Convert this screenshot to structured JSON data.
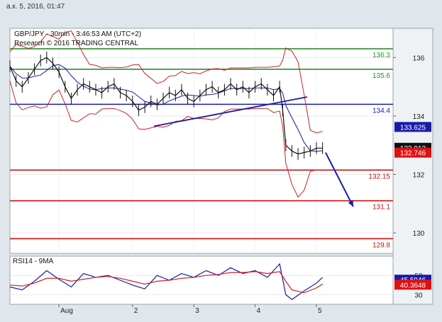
{
  "header": {
    "timestamp": "а.к. 5, 2016, 01:47"
  },
  "chart_data": {
    "type": "line",
    "title": "GBP/JPY - 30min - 3:46:53 AM (UTC+2)",
    "subtitle": "Research © 2016 TRADING CENTRAL",
    "ylim": [
      129.3,
      137.0
    ],
    "y_ticks": [
      {
        "value": 130,
        "label": "130"
      },
      {
        "value": 132,
        "label": "132"
      },
      {
        "value": 134,
        "label": "134"
      },
      {
        "value": 136,
        "label": "136"
      }
    ],
    "x_ticks": [
      {
        "x": 0.8,
        "label": "Aug"
      },
      {
        "x": 2,
        "label": "2"
      },
      {
        "x": 3,
        "label": "3"
      },
      {
        "x": 4,
        "label": "4"
      },
      {
        "x": 5,
        "label": "5"
      }
    ],
    "levels": [
      {
        "name": "resistance-2",
        "value": 136.3,
        "label": "136.3",
        "color": "#2e8b2e"
      },
      {
        "name": "resistance-1",
        "value": 135.6,
        "label": "135.6",
        "color": "#2e8b2e"
      },
      {
        "name": "pivot",
        "value": 134.4,
        "label": "134.4",
        "color": "#1a1aa6"
      },
      {
        "name": "support-1",
        "value": 132.15,
        "label": "132.15",
        "color": "#cc1111"
      },
      {
        "name": "support-2",
        "value": 131.1,
        "label": "131.1",
        "color": "#cc1111"
      },
      {
        "name": "support-3",
        "value": 129.8,
        "label": "129.8",
        "color": "#cc1111"
      }
    ],
    "price_tags": [
      {
        "value": 133.625,
        "label": "133.625",
        "bg": "#1a1aa6",
        "fg": "#ffffff"
      },
      {
        "value": 132.912,
        "label": "132.912",
        "bg": "#111111",
        "fg": "#ffffff"
      },
      {
        "value": 132.746,
        "label": "132.746",
        "bg": "#dd1111",
        "fg": "#ffffff"
      }
    ],
    "price_series": {
      "x": [
        0.0,
        0.1,
        0.2,
        0.3,
        0.4,
        0.5,
        0.6,
        0.7,
        0.8,
        0.9,
        1.0,
        1.1,
        1.2,
        1.3,
        1.4,
        1.5,
        1.6,
        1.7,
        1.8,
        1.9,
        2.0,
        2.1,
        2.2,
        2.3,
        2.4,
        2.5,
        2.6,
        2.7,
        2.8,
        2.9,
        3.0,
        3.1,
        3.2,
        3.3,
        3.4,
        3.5,
        3.6,
        3.7,
        3.8,
        3.9,
        4.0,
        4.1,
        4.2,
        4.3,
        4.4,
        4.45,
        4.5,
        4.6,
        4.7,
        4.8,
        4.9,
        5.0,
        5.1
      ],
      "y": [
        135.7,
        135.2,
        135.0,
        135.3,
        135.6,
        135.9,
        136.0,
        135.8,
        135.5,
        135.0,
        134.6,
        134.9,
        135.1,
        135.0,
        134.9,
        134.8,
        135.0,
        135.1,
        134.8,
        134.7,
        134.5,
        134.2,
        134.3,
        134.5,
        134.4,
        134.6,
        134.8,
        134.7,
        134.9,
        134.6,
        134.5,
        134.7,
        134.9,
        135.0,
        134.8,
        134.9,
        135.1,
        134.9,
        135.0,
        134.8,
        135.0,
        135.1,
        134.9,
        134.7,
        135.0,
        134.2,
        133.0,
        132.8,
        132.7,
        132.75,
        132.8,
        132.9,
        132.9
      ]
    },
    "trendlines": [
      {
        "x1": 2.35,
        "y1": 133.65,
        "x2": 4.85,
        "y2": 134.65,
        "color": "#1a1aa6"
      }
    ],
    "forecast_arrow": {
      "x1": 5.15,
      "y1": 132.75,
      "x2": 5.6,
      "y2": 130.9,
      "color": "#1a1aa6"
    },
    "rsi": {
      "title": "RSI14 - 9MA",
      "ylim": [
        20,
        70
      ],
      "y_ticks": [
        {
          "value": 30,
          "label": "30"
        },
        {
          "value": 50,
          "label": "50"
        }
      ],
      "price_tags": [
        {
          "value": 45.5946,
          "label": "45.5946",
          "bg": "#1a1aa6",
          "fg": "#ffffff"
        },
        {
          "value": 40.3648,
          "label": "40.3648",
          "bg": "#dd1111",
          "fg": "#ffffff"
        }
      ],
      "rsi_x": [
        0.0,
        0.2,
        0.4,
        0.6,
        0.8,
        1.0,
        1.2,
        1.4,
        1.6,
        1.8,
        2.0,
        2.2,
        2.4,
        2.6,
        2.8,
        3.0,
        3.2,
        3.4,
        3.6,
        3.8,
        4.0,
        4.2,
        4.4,
        4.5,
        4.6,
        4.8,
        5.0,
        5.1
      ],
      "rsi_y": [
        38,
        35,
        44,
        55,
        46,
        38,
        52,
        48,
        50,
        45,
        40,
        36,
        50,
        45,
        52,
        48,
        55,
        50,
        58,
        52,
        55,
        48,
        62,
        30,
        25,
        34,
        42,
        48
      ],
      "ma_y": [
        40,
        39,
        42,
        47,
        47,
        44,
        46,
        48,
        49,
        47,
        44,
        41,
        44,
        45,
        47,
        48,
        50,
        51,
        53,
        53,
        54,
        52,
        54,
        44,
        35,
        32,
        37,
        41
      ]
    }
  }
}
